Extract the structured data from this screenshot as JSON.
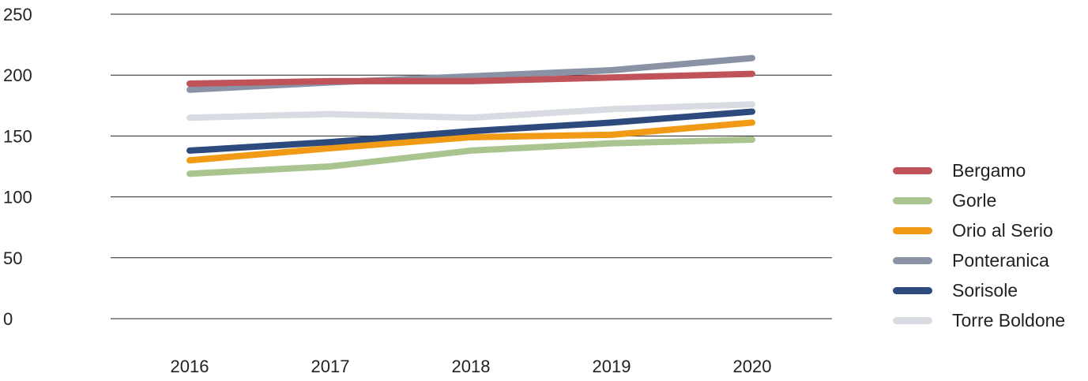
{
  "chart_data": {
    "type": "line",
    "title": "",
    "xlabel": "",
    "ylabel": "",
    "categories": [
      "2016",
      "2017",
      "2018",
      "2019",
      "2020"
    ],
    "ylim": [
      0,
      250
    ],
    "yticks": [
      "0",
      "50",
      "100",
      "150",
      "200",
      "250"
    ],
    "grid": true,
    "legend_position": "right",
    "series": [
      {
        "name": "Bergamo",
        "color": "#c0525a",
        "values": [
          193,
          195,
          195,
          198,
          201
        ]
      },
      {
        "name": "Gorle",
        "color": "#a9c48f",
        "values": [
          119,
          125,
          138,
          144,
          147
        ]
      },
      {
        "name": "Orio al Serio",
        "color": "#f09a16",
        "values": [
          130,
          140,
          149,
          151,
          161
        ]
      },
      {
        "name": "Ponteranica",
        "color": "#8a93a6",
        "values": [
          188,
          194,
          199,
          204,
          214
        ]
      },
      {
        "name": "Sorisole",
        "color": "#2d4a7d",
        "values": [
          138,
          145,
          154,
          161,
          170
        ]
      },
      {
        "name": "Torre Boldone",
        "color": "#d8dce2",
        "values": [
          165,
          168,
          165,
          172,
          176
        ]
      }
    ]
  }
}
